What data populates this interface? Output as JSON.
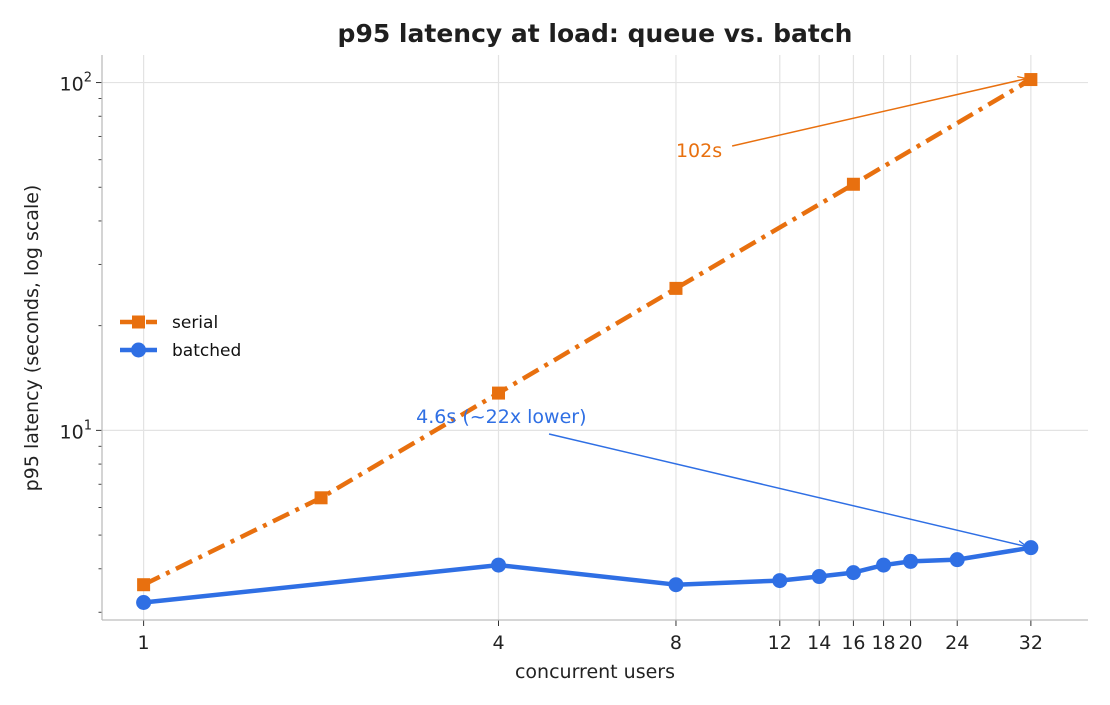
{
  "chart_data": {
    "type": "line",
    "title": "p95 latency at load: queue vs. batch",
    "xlabel": "concurrent users",
    "ylabel": "p95 latency (seconds, log scale)",
    "xscale": "log2",
    "yscale": "log10",
    "xlim": [
      0.85,
      40
    ],
    "ylim": [
      2.85,
      120
    ],
    "xticks": [
      1,
      4,
      8,
      12,
      14,
      16,
      18,
      20,
      24,
      32
    ],
    "xtick_labels": [
      "1",
      "4",
      "8",
      "12",
      "14",
      "16",
      "18",
      "20",
      "24",
      "32"
    ],
    "yticks": [
      10,
      100
    ],
    "ytick_base": "10",
    "ytick_exponents": [
      "1",
      "2"
    ],
    "grid": true,
    "legend_position": "center-left",
    "series": [
      {
        "name": "serial",
        "color": "#e8700f",
        "marker": "square",
        "linestyle": "dashdot",
        "x": [
          1,
          2,
          4,
          8,
          16,
          32
        ],
        "y": [
          3.6,
          6.4,
          12.8,
          25.6,
          51.0,
          102.0
        ]
      },
      {
        "name": "batched",
        "color": "#2f6fe4",
        "marker": "circle",
        "linestyle": "solid",
        "x": [
          1,
          4,
          8,
          12,
          14,
          16,
          18,
          20,
          24,
          32
        ],
        "y": [
          3.2,
          4.1,
          3.6,
          3.7,
          3.8,
          3.9,
          4.1,
          4.2,
          4.25,
          4.6
        ]
      }
    ],
    "annotations": [
      {
        "text": "102s",
        "color": "#e8700f",
        "target_x": 32,
        "target_y": 102,
        "text_x": 8,
        "text_y": 64
      },
      {
        "text": "4.6s  (~22x lower)",
        "color": "#2f6fe4",
        "target_x": 32,
        "target_y": 4.6,
        "text_x": 2.9,
        "text_y": 11
      }
    ]
  }
}
